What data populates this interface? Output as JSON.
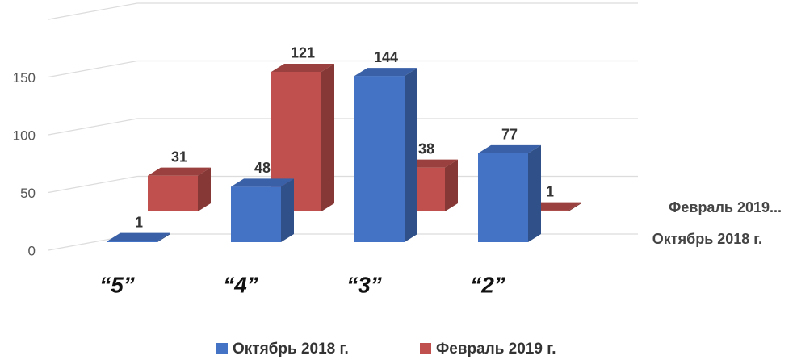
{
  "chart_data": {
    "type": "bar3d",
    "categories": [
      "“5”",
      "“4”",
      "“3”",
      "“2”"
    ],
    "series": [
      {
        "name": "Октябрь 2018 г.",
        "color": "#4472c4",
        "values": [
          1,
          48,
          144,
          77
        ]
      },
      {
        "name": "Февраль 2019 г.",
        "color": "#c0504d",
        "values": [
          31,
          121,
          38,
          1
        ]
      }
    ],
    "depth_labels": [
      "Октябрь 2018 г.",
      "Февраль 2019..."
    ],
    "ylim": [
      0,
      200
    ],
    "yticks": [
      0,
      50,
      100,
      150
    ],
    "grid": true,
    "legend": "bottom"
  }
}
